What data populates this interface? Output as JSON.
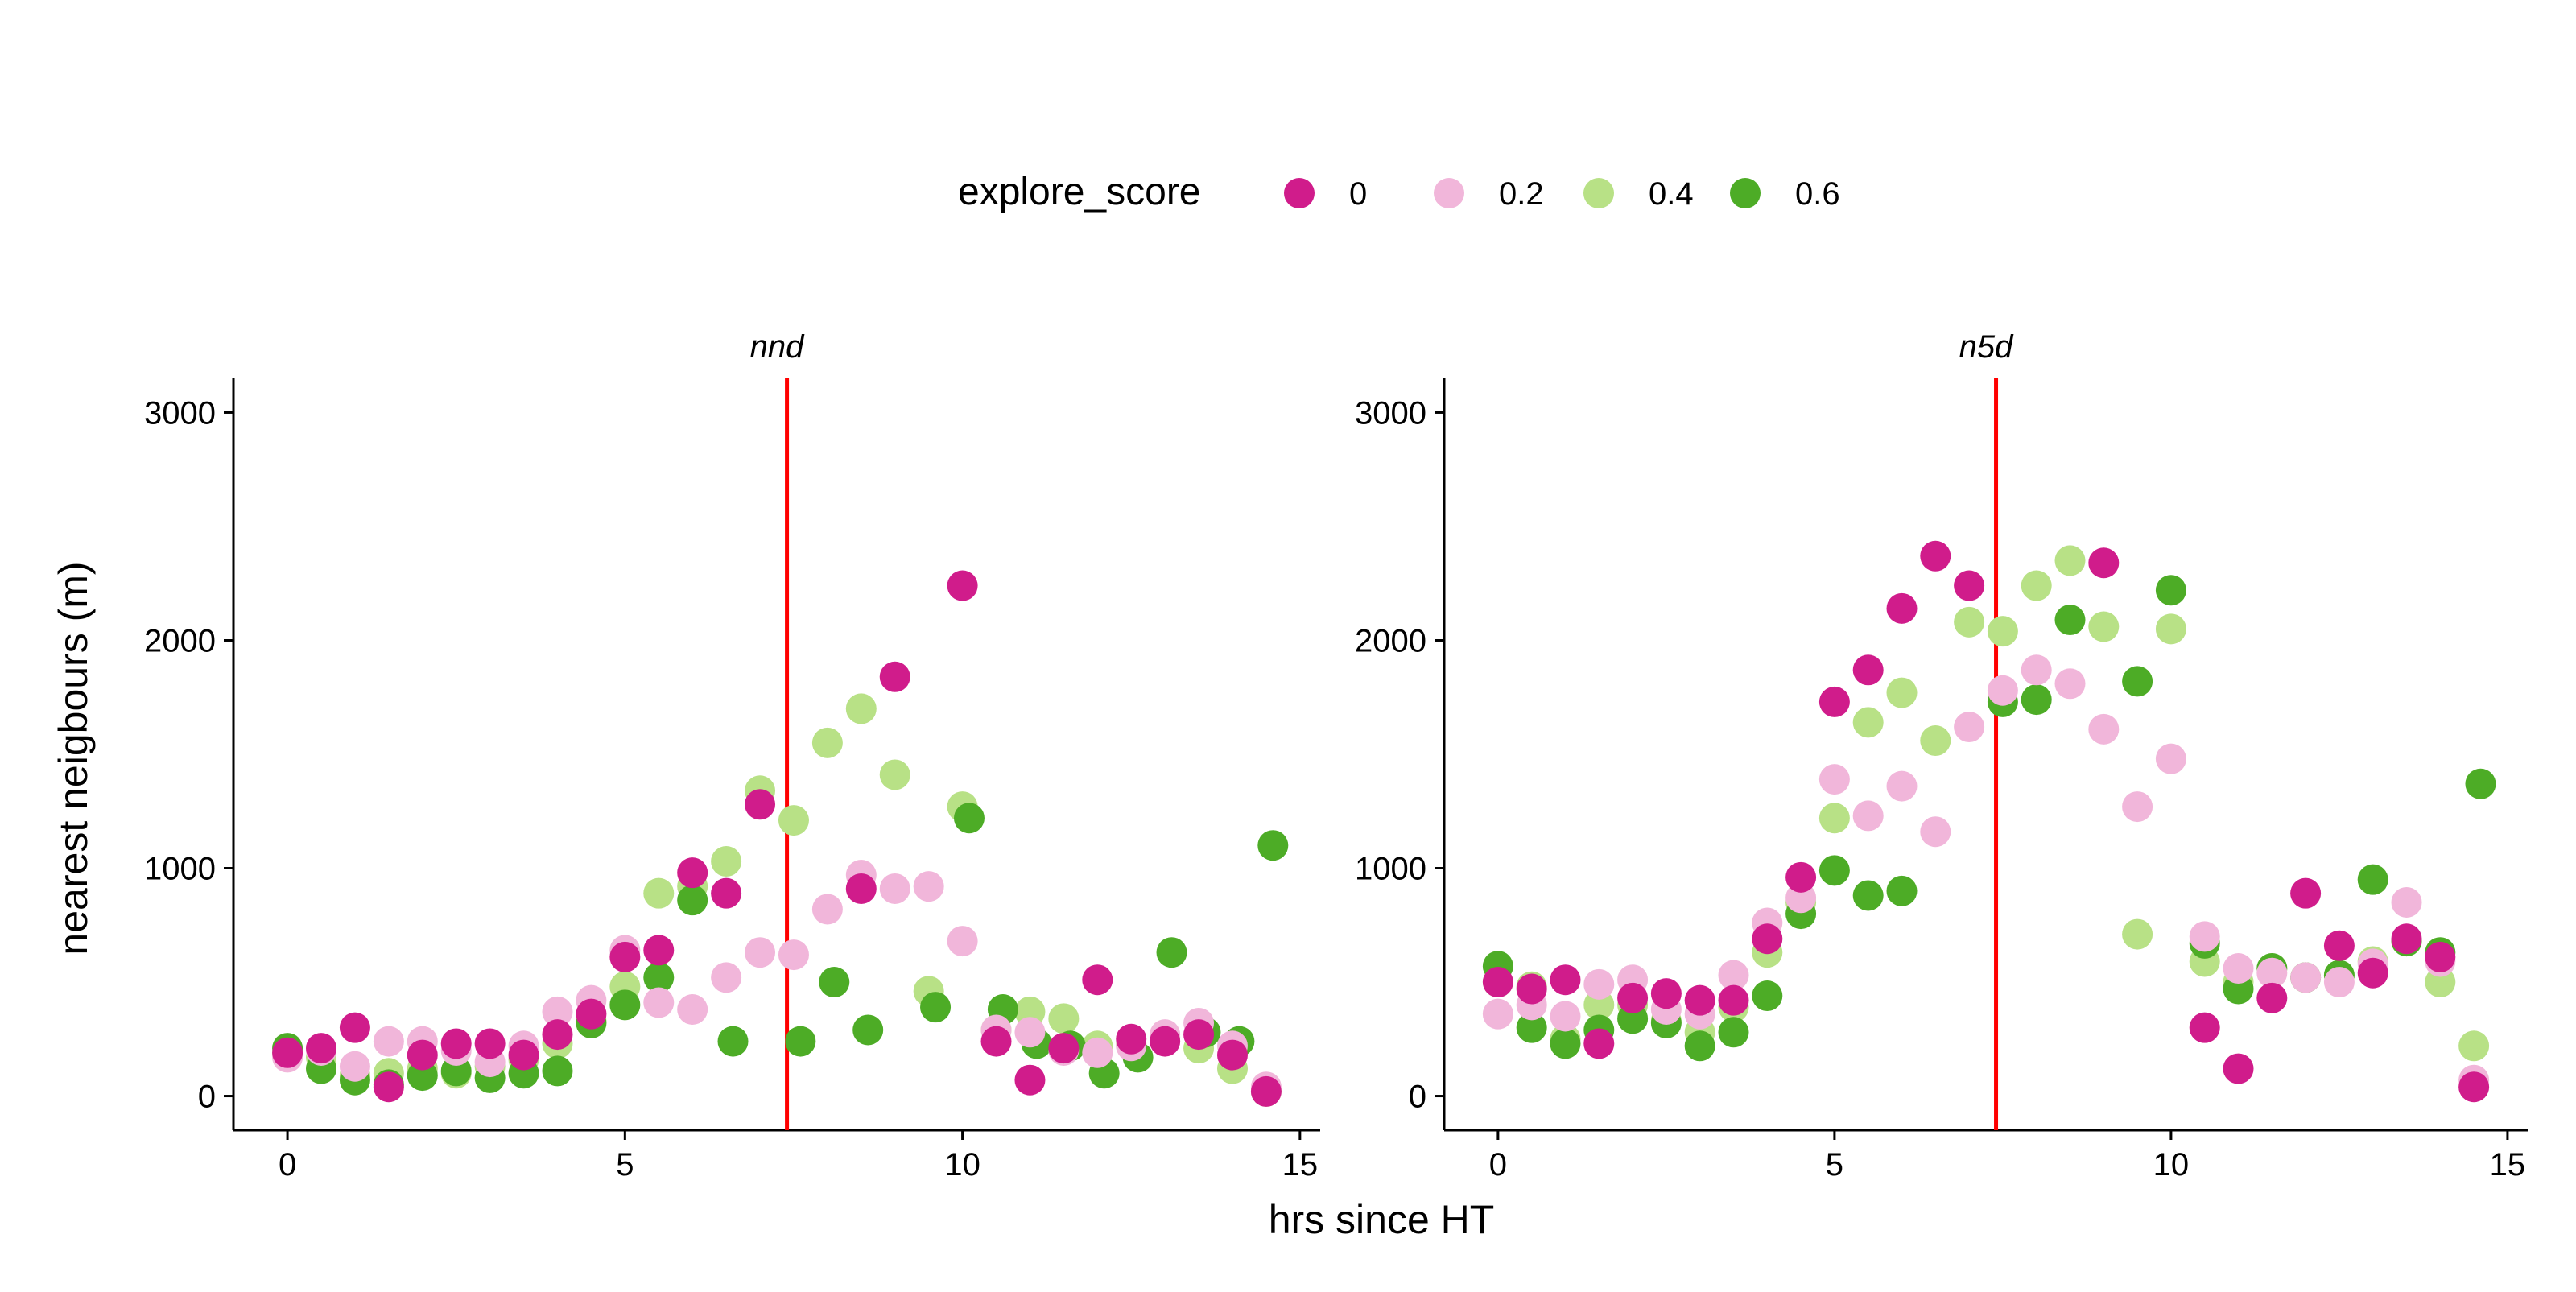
{
  "chart_data": {
    "type": "scatter",
    "xlabel": "hrs since HT",
    "ylabel": "nearest neigbours (m)",
    "xlim": [
      -0.8,
      15.3
    ],
    "ylim": [
      -150,
      3150
    ],
    "x_ticks": [
      0,
      5,
      10,
      15
    ],
    "y_ticks": [
      0,
      1000,
      2000,
      3000
    ],
    "grid": false,
    "legend": {
      "title": "explore_score",
      "placement": "top",
      "entries": [
        {
          "label": "0",
          "color": "#D01C8B"
        },
        {
          "label": "0.2",
          "color": "#F1B6DA"
        },
        {
          "label": "0.4",
          "color": "#B8E186"
        },
        {
          "label": "0.6",
          "color": "#4DAC26"
        }
      ]
    },
    "reference_line": {
      "x": 7.4,
      "color": "#FF0000"
    },
    "facets": [
      {
        "label": "nnd",
        "series": [
          {
            "name": "0.4",
            "color": "#B8E186",
            "points": [
              [
                0,
                190
              ],
              [
                0.5,
                170
              ],
              [
                1,
                90
              ],
              [
                1.5,
                100
              ],
              [
                2,
                120
              ],
              [
                2.5,
                100
              ],
              [
                3,
                130
              ],
              [
                3.5,
                160
              ],
              [
                4,
                230
              ],
              [
                4.5,
                330
              ],
              [
                5,
                480
              ],
              [
                5.5,
                890
              ],
              [
                6,
                920
              ],
              [
                6.5,
                1030
              ],
              [
                7,
                1340
              ],
              [
                7.5,
                1210
              ],
              [
                8,
                1550
              ],
              [
                8.5,
                1700
              ],
              [
                9,
                1410
              ],
              [
                9.5,
                460
              ],
              [
                10,
                1270
              ],
              [
                10.5,
                290
              ],
              [
                11,
                370
              ],
              [
                11.5,
                340
              ],
              [
                12,
                220
              ],
              [
                12.5,
                230
              ],
              [
                13,
                260
              ],
              [
                13.5,
                210
              ],
              [
                14,
                120
              ],
              [
                14.5,
                20
              ]
            ]
          },
          {
            "name": "0.6",
            "color": "#4DAC26",
            "points": [
              [
                0,
                210
              ],
              [
                0.5,
                120
              ],
              [
                1,
                70
              ],
              [
                1.5,
                50
              ],
              [
                2,
                90
              ],
              [
                2.5,
                110
              ],
              [
                3,
                80
              ],
              [
                3.5,
                100
              ],
              [
                4,
                110
              ],
              [
                4.5,
                320
              ],
              [
                5,
                400
              ],
              [
                5.5,
                520
              ],
              [
                6,
                860
              ],
              [
                6.6,
                240
              ],
              [
                7.6,
                240
              ],
              [
                8.1,
                500
              ],
              [
                8.6,
                290
              ],
              [
                9.6,
                390
              ],
              [
                10.1,
                1220
              ],
              [
                10.6,
                380
              ],
              [
                11.1,
                230
              ],
              [
                11.6,
                220
              ],
              [
                12.1,
                100
              ],
              [
                12.6,
                170
              ],
              [
                13.1,
                630
              ],
              [
                13.6,
                280
              ],
              [
                14.1,
                240
              ],
              [
                14.6,
                1100
              ]
            ]
          },
          {
            "name": "0.2",
            "color": "#F1B6DA",
            "points": [
              [
                0,
                170
              ],
              [
                0.5,
                200
              ],
              [
                1,
                130
              ],
              [
                1.5,
                240
              ],
              [
                2,
                240
              ],
              [
                2.5,
                200
              ],
              [
                3,
                150
              ],
              [
                3.5,
                220
              ],
              [
                4,
                370
              ],
              [
                4.5,
                420
              ],
              [
                5,
                640
              ],
              [
                5.5,
                410
              ],
              [
                6,
                380
              ],
              [
                6.5,
                520
              ],
              [
                7,
                630
              ],
              [
                7.5,
                620
              ],
              [
                8,
                820
              ],
              [
                8.5,
                970
              ],
              [
                9,
                910
              ],
              [
                9.5,
                920
              ],
              [
                10,
                680
              ],
              [
                10.5,
                290
              ],
              [
                11,
                280
              ],
              [
                11.5,
                200
              ],
              [
                12,
                190
              ],
              [
                12.5,
                220
              ],
              [
                13,
                270
              ],
              [
                13.5,
                320
              ],
              [
                14,
                220
              ],
              [
                14.5,
                40
              ]
            ]
          },
          {
            "name": "0",
            "color": "#D01C8B",
            "points": [
              [
                0,
                190
              ],
              [
                0.5,
                210
              ],
              [
                1,
                300
              ],
              [
                1.5,
                40
              ],
              [
                2,
                180
              ],
              [
                2.5,
                230
              ],
              [
                3,
                230
              ],
              [
                3.5,
                180
              ],
              [
                4,
                270
              ],
              [
                4.5,
                360
              ],
              [
                5,
                610
              ],
              [
                5.5,
                640
              ],
              [
                6,
                980
              ],
              [
                6.5,
                890
              ],
              [
                7,
                1280
              ],
              [
                8.5,
                910
              ],
              [
                9,
                1840
              ],
              [
                10,
                2240
              ],
              [
                10.5,
                240
              ],
              [
                11,
                70
              ],
              [
                11.5,
                210
              ],
              [
                12,
                510
              ],
              [
                12.5,
                250
              ],
              [
                13,
                240
              ],
              [
                13.5,
                270
              ],
              [
                14,
                180
              ],
              [
                14.5,
                20
              ]
            ]
          }
        ]
      },
      {
        "label": "n5d",
        "series": [
          {
            "name": "0.4",
            "color": "#B8E186",
            "points": [
              [
                0,
                500
              ],
              [
                0.5,
                480
              ],
              [
                1,
                250
              ],
              [
                1.5,
                400
              ],
              [
                2,
                400
              ],
              [
                2.5,
                330
              ],
              [
                3,
                280
              ],
              [
                3.5,
                390
              ],
              [
                4,
                630
              ],
              [
                4.5,
                850
              ],
              [
                5,
                1220
              ],
              [
                5.5,
                1640
              ],
              [
                6,
                1770
              ],
              [
                6.5,
                1560
              ],
              [
                7,
                2080
              ],
              [
                7.5,
                2040
              ],
              [
                8,
                2240
              ],
              [
                8.5,
                2350
              ],
              [
                9,
                2060
              ],
              [
                9.5,
                710
              ],
              [
                10,
                2050
              ],
              [
                10.5,
                590
              ],
              [
                11,
                500
              ],
              [
                11.5,
                560
              ],
              [
                12,
                520
              ],
              [
                12.5,
                530
              ],
              [
                13,
                590
              ],
              [
                13.5,
                680
              ],
              [
                14,
                500
              ],
              [
                14.5,
                220
              ]
            ]
          },
          {
            "name": "0.6",
            "color": "#4DAC26",
            "points": [
              [
                0,
                570
              ],
              [
                0.5,
                300
              ],
              [
                1,
                230
              ],
              [
                1.5,
                290
              ],
              [
                2,
                340
              ],
              [
                2.5,
                320
              ],
              [
                3,
                220
              ],
              [
                3.5,
                280
              ],
              [
                4,
                440
              ],
              [
                4.5,
                800
              ],
              [
                5,
                990
              ],
              [
                5.5,
                880
              ],
              [
                6,
                900
              ],
              [
                7.5,
                1730
              ],
              [
                8,
                1740
              ],
              [
                8.5,
                2090
              ],
              [
                9.5,
                1820
              ],
              [
                10,
                2220
              ],
              [
                10.5,
                670
              ],
              [
                11,
                470
              ],
              [
                11.5,
                560
              ],
              [
                12,
                520
              ],
              [
                12.5,
                530
              ],
              [
                13,
                950
              ],
              [
                13.5,
                680
              ],
              [
                14,
                630
              ],
              [
                14.6,
                1370
              ]
            ]
          },
          {
            "name": "0.2",
            "color": "#F1B6DA",
            "points": [
              [
                0,
                360
              ],
              [
                0.5,
                400
              ],
              [
                1,
                350
              ],
              [
                1.5,
                490
              ],
              [
                2,
                510
              ],
              [
                2.5,
                380
              ],
              [
                3,
                360
              ],
              [
                3.5,
                530
              ],
              [
                4,
                760
              ],
              [
                4.5,
                870
              ],
              [
                5,
                1390
              ],
              [
                5.5,
                1230
              ],
              [
                6,
                1360
              ],
              [
                6.5,
                1160
              ],
              [
                7,
                1620
              ],
              [
                7.5,
                1780
              ],
              [
                8,
                1870
              ],
              [
                8.5,
                1810
              ],
              [
                9,
                1610
              ],
              [
                9.5,
                1270
              ],
              [
                10,
                1480
              ],
              [
                10.5,
                700
              ],
              [
                11,
                560
              ],
              [
                11.5,
                540
              ],
              [
                12,
                520
              ],
              [
                12.5,
                500
              ],
              [
                13,
                580
              ],
              [
                13.5,
                850
              ],
              [
                14,
                590
              ],
              [
                14.5,
                70
              ]
            ]
          },
          {
            "name": "0",
            "color": "#D01C8B",
            "points": [
              [
                0,
                500
              ],
              [
                0.5,
                470
              ],
              [
                1,
                510
              ],
              [
                1.5,
                230
              ],
              [
                2,
                430
              ],
              [
                2.5,
                450
              ],
              [
                3,
                420
              ],
              [
                3.5,
                420
              ],
              [
                4,
                690
              ],
              [
                4.5,
                960
              ],
              [
                5,
                1730
              ],
              [
                5.5,
                1870
              ],
              [
                6,
                2140
              ],
              [
                6.5,
                2370
              ],
              [
                7,
                2240
              ],
              [
                9,
                2340
              ],
              [
                10.5,
                300
              ],
              [
                11,
                120
              ],
              [
                11.5,
                430
              ],
              [
                12,
                890
              ],
              [
                12.5,
                660
              ],
              [
                13,
                540
              ],
              [
                13.5,
                690
              ],
              [
                14,
                610
              ],
              [
                14.5,
                40
              ]
            ]
          }
        ]
      }
    ]
  }
}
